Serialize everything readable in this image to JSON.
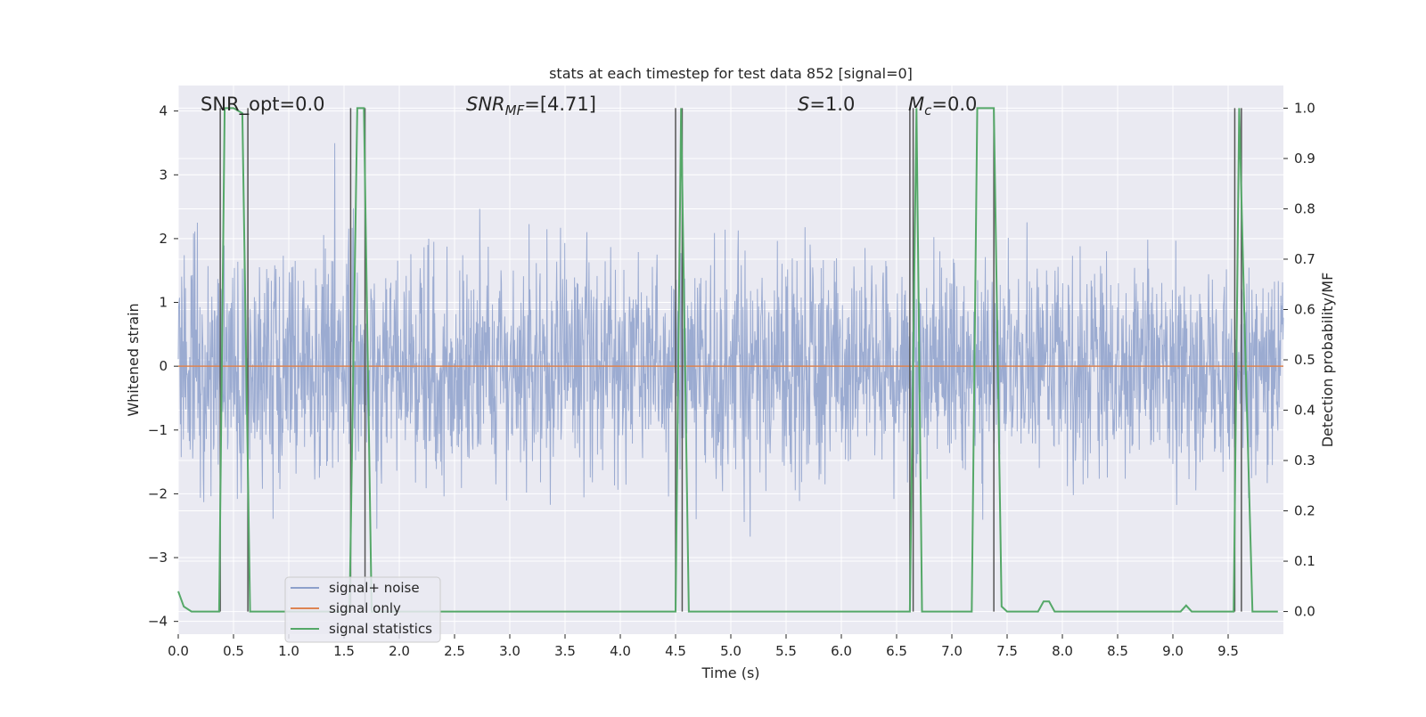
{
  "chart_data": {
    "type": "line",
    "title": "stats at each timestep for test data 852 [signal=0]",
    "xlabel": "Time (s)",
    "ylabel": "Whitened strain",
    "y2label": "Detection probability/MF",
    "xlim": [
      0.0,
      10.0
    ],
    "ylim": [
      -4.2,
      4.4
    ],
    "y2lim": [
      -0.045,
      1.045
    ],
    "x_ticks": [
      "0.0",
      "0.5",
      "1.0",
      "1.5",
      "2.0",
      "2.5",
      "3.0",
      "3.5",
      "4.0",
      "4.5",
      "5.0",
      "5.5",
      "6.0",
      "6.5",
      "7.0",
      "7.5",
      "8.0",
      "8.5",
      "9.0",
      "9.5"
    ],
    "y_ticks": [
      "4",
      "3",
      "2",
      "1",
      "0",
      "−1",
      "−2",
      "−3",
      "−4"
    ],
    "y2_ticks": [
      "1.0",
      "0.9",
      "0.8",
      "0.7",
      "0.6",
      "0.5",
      "0.4",
      "0.3",
      "0.2",
      "0.1",
      "0.0"
    ],
    "grid": true,
    "legend": "lower-left",
    "annotations": [
      {
        "id": "snr_opt",
        "text": "SNR_opt=0.0",
        "italic": false
      },
      {
        "id": "snr_mf",
        "prefix": "SNR",
        "sub": "MF",
        "suffix": "=[4.71]",
        "italic": true
      },
      {
        "id": "s",
        "prefix": "S",
        "sub": "",
        "suffix": "=1.0",
        "italic": true
      },
      {
        "id": "mc",
        "prefix": "M",
        "sub": "c",
        "suffix": "=0.0",
        "italic": true
      }
    ],
    "series": [
      {
        "name": "signal+ noise",
        "color": "#8da0cb",
        "note": "noise trace, amplitude roughly within -3.5..4"
      },
      {
        "name": "signal only",
        "color": "#dd8452",
        "x": [
          0.0,
          10.0
        ],
        "y": [
          0.0,
          0.0
        ]
      },
      {
        "name": "signal statistics",
        "color": "#55a868",
        "axis": "right",
        "x": [
          0.0,
          0.05,
          0.12,
          0.37,
          0.42,
          0.5,
          0.58,
          0.65,
          0.7,
          1.55,
          1.62,
          1.68,
          1.75,
          4.5,
          4.55,
          4.62,
          6.62,
          6.68,
          6.73,
          7.18,
          7.23,
          7.38,
          7.45,
          7.5,
          7.78,
          7.83,
          7.88,
          7.93,
          9.07,
          9.12,
          9.17,
          9.55,
          9.6,
          9.65,
          9.72,
          9.78,
          9.95
        ],
        "y": [
          0.04,
          0.01,
          0.0,
          0.0,
          1.0,
          1.0,
          0.99,
          0.0,
          0.0,
          0.0,
          1.0,
          1.0,
          0.0,
          0.0,
          1.0,
          0.0,
          0.0,
          1.0,
          0.0,
          0.0,
          1.0,
          1.0,
          0.01,
          0.0,
          0.0,
          0.02,
          0.02,
          0.0,
          0.0,
          0.012,
          0.0,
          0.0,
          1.0,
          0.56,
          0.0,
          0.0,
          0.0
        ]
      }
    ],
    "vlines": [
      0.38,
      0.63,
      1.56,
      1.69,
      4.5,
      4.56,
      6.62,
      6.65,
      7.38,
      9.56,
      9.62
    ],
    "vline_color": "#555555"
  }
}
